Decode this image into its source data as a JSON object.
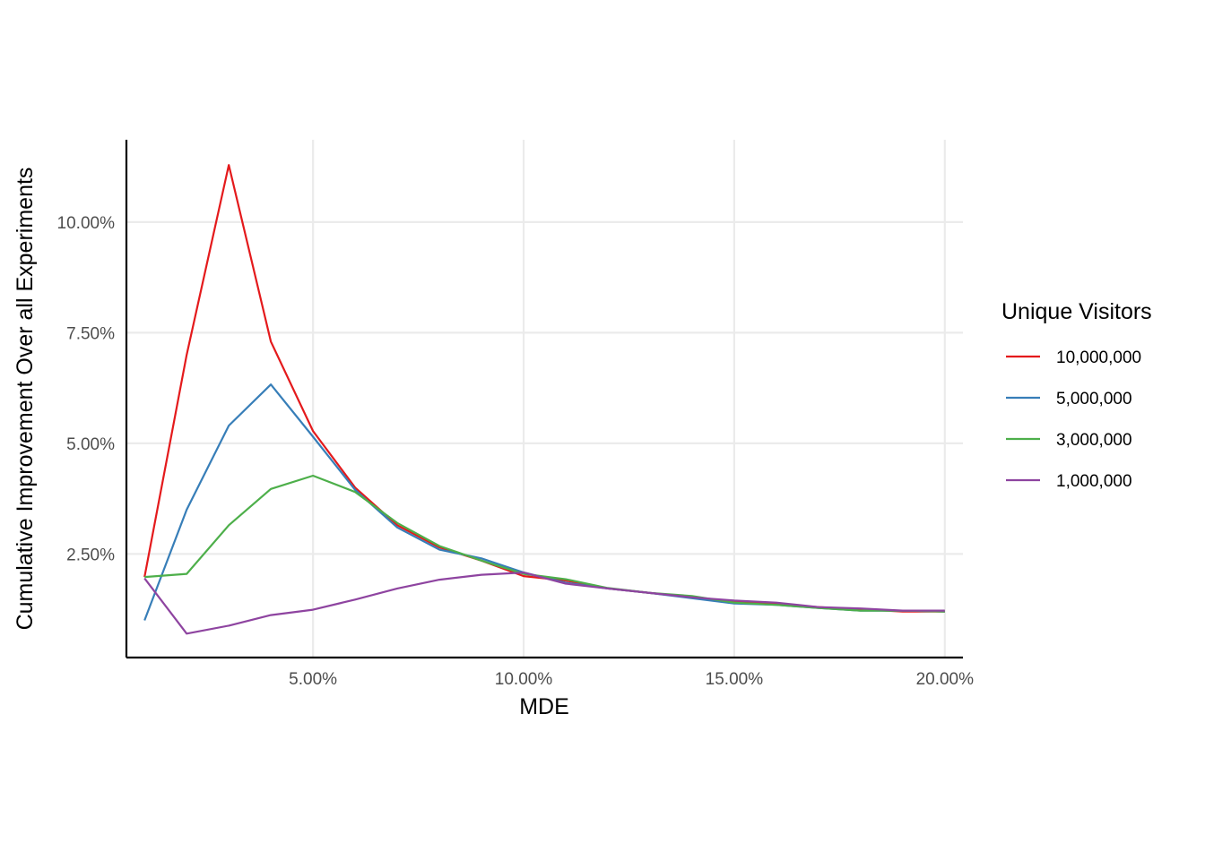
{
  "chart_data": {
    "type": "line",
    "xlabel": "MDE",
    "ylabel": "Cumulative Improvement Over all Experiments",
    "xlim": [
      0.0057,
      0.2043
    ],
    "ylim": [
      0.0016,
      0.1186
    ],
    "x_ticks": [
      {
        "value": 0.05,
        "label": "5.00%"
      },
      {
        "value": 0.1,
        "label": "10.00%"
      },
      {
        "value": 0.15,
        "label": "15.00%"
      },
      {
        "value": 0.2,
        "label": "20.00%"
      }
    ],
    "y_ticks": [
      {
        "value": 0.025,
        "label": "2.50%"
      },
      {
        "value": 0.05,
        "label": "5.00%"
      },
      {
        "value": 0.075,
        "label": "7.50%"
      },
      {
        "value": 0.1,
        "label": "10.00%"
      }
    ],
    "grid": true,
    "legend": {
      "title": "Unique Visitors",
      "position": "right"
    },
    "x": [
      0.01,
      0.02,
      0.03,
      0.04,
      0.05,
      0.06,
      0.07,
      0.08,
      0.09,
      0.1,
      0.11,
      0.12,
      0.13,
      0.14,
      0.15,
      0.16,
      0.17,
      0.18,
      0.19,
      0.2
    ],
    "series": [
      {
        "name": "10,000,000",
        "color": "#e41a1c",
        "values": [
          0.0198,
          0.07,
          0.1129,
          0.073,
          0.0528,
          0.04,
          0.0315,
          0.0265,
          0.0235,
          0.02,
          0.019,
          0.0172,
          0.0162,
          0.0152,
          0.0143,
          0.0137,
          0.013,
          0.0125,
          0.012,
          0.012
        ]
      },
      {
        "name": "5,000,000",
        "color": "#377eb8",
        "values": [
          0.01,
          0.035,
          0.054,
          0.0633,
          0.0515,
          0.0395,
          0.031,
          0.026,
          0.024,
          0.0208,
          0.0185,
          0.0172,
          0.0162,
          0.015,
          0.0138,
          0.0135,
          0.0128,
          0.0122,
          0.0122,
          0.012
        ]
      },
      {
        "name": "3,000,000",
        "color": "#4daf4a",
        "values": [
          0.0198,
          0.0205,
          0.0315,
          0.0397,
          0.0427,
          0.039,
          0.032,
          0.0268,
          0.0235,
          0.0205,
          0.0193,
          0.0173,
          0.0162,
          0.0155,
          0.014,
          0.0135,
          0.0128,
          0.0122,
          0.0122,
          0.012
        ]
      },
      {
        "name": "1,000,000",
        "color": "#8e44a0",
        "values": [
          0.0195,
          0.007,
          0.0088,
          0.0112,
          0.0124,
          0.0147,
          0.0172,
          0.0192,
          0.0203,
          0.0208,
          0.0183,
          0.0172,
          0.0162,
          0.0152,
          0.0145,
          0.014,
          0.013,
          0.0127,
          0.0122,
          0.0122
        ]
      }
    ]
  }
}
